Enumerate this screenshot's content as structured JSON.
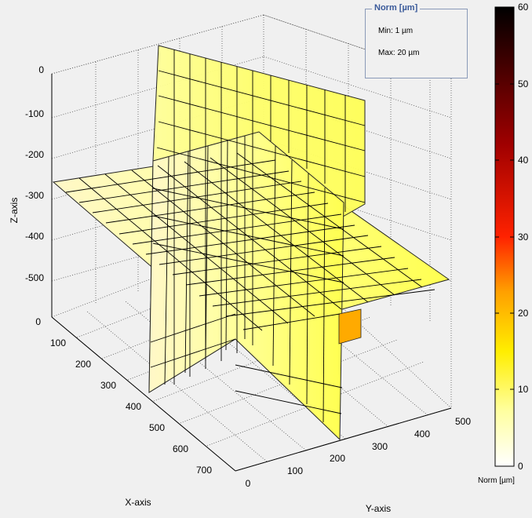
{
  "chart_data": {
    "type": "slice-3d",
    "xlabel": "X-axis",
    "ylabel": "Y-axis",
    "zlabel": "Z-axis",
    "xlim": [
      0,
      750
    ],
    "ylim": [
      0,
      500
    ],
    "zlim": [
      -550,
      0
    ],
    "x_ticks": [
      "100",
      "200",
      "300",
      "400",
      "500",
      "600",
      "700"
    ],
    "y_ticks": [
      "0",
      "100",
      "200",
      "300",
      "400",
      "500"
    ],
    "z_ticks": [
      "0",
      "-100",
      "-200",
      "-300",
      "-400",
      "-500"
    ],
    "x_start_label": "0",
    "grid": true,
    "colorbar": {
      "label": "Norm [µm]",
      "range": [
        0,
        60
      ],
      "ticks": [
        "0",
        "10",
        "20",
        "30",
        "40",
        "50",
        "60"
      ],
      "colormap": "hot",
      "colors": [
        "#ffffff",
        "#ffff99",
        "#ffee00",
        "#ff9900",
        "#ff2200",
        "#990000",
        "#000000"
      ]
    },
    "slices": [
      {
        "plane": "x",
        "value": 400,
        "value_color": "#ffff66"
      },
      {
        "plane": "y",
        "value": 250,
        "value_color": "#ffff66"
      },
      {
        "plane": "z",
        "value": -300,
        "value_color": "#ffff66"
      }
    ]
  },
  "legend": {
    "title": "Norm [µm]",
    "min_label": "Min: 1 µm",
    "max_label": "Max: 20 µm"
  }
}
